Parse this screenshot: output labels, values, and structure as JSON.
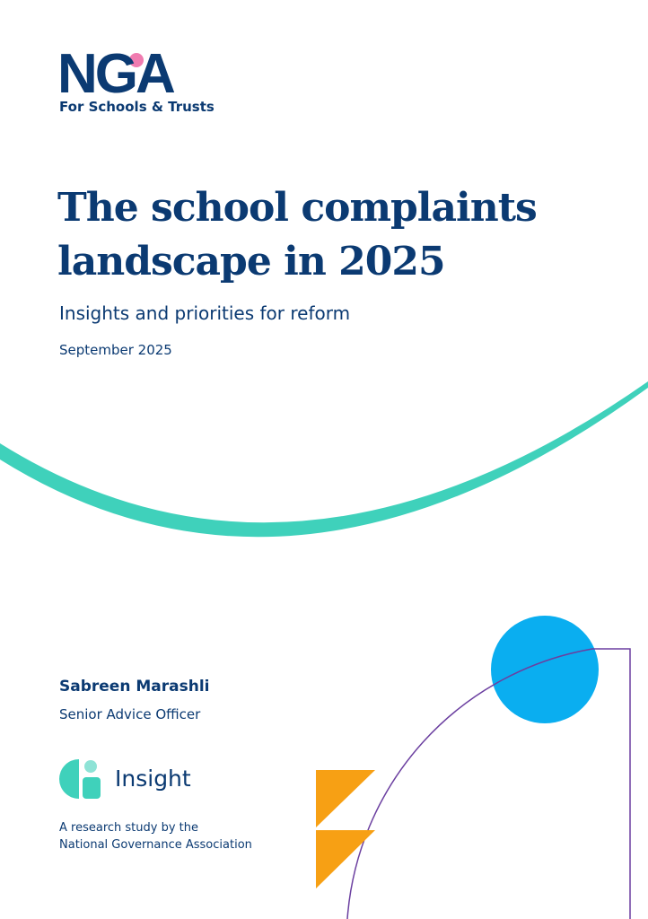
{
  "logo": {
    "wordmark": "NGA",
    "tagline": "For Schools & Trusts"
  },
  "title": {
    "line1": "The school complaints",
    "line2": "landscape in 2025"
  },
  "subtitle": "Insights and priorities for reform",
  "date": "September 2025",
  "author": {
    "name": "Sabreen Marashli",
    "role": "Senior Advice Officer"
  },
  "series_logo": {
    "label": "Insight"
  },
  "attribution": {
    "line1": "A research study by the",
    "line2": "National Governance Association"
  }
}
